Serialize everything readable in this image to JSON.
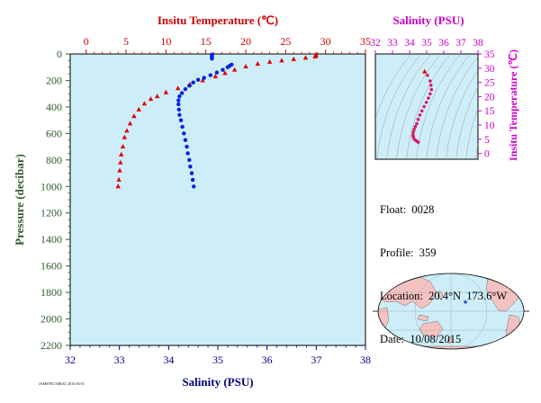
{
  "chart_data": {
    "main": {
      "type": "scatter",
      "top_axis_title": "Insitu Temperature (℃)",
      "bottom_axis_title": "Salinity (PSU)",
      "left_axis_title": "Pressure (decibar)",
      "temperature_range": [
        -2,
        35
      ],
      "salinity_range": [
        32,
        38
      ],
      "pressure_range": [
        0,
        2200
      ],
      "temperature_ticks": [
        "0",
        "5",
        "10",
        "15",
        "20",
        "25",
        "30",
        "35"
      ],
      "salinity_ticks": [
        "32",
        "33",
        "34",
        "35",
        "36",
        "37",
        "38"
      ],
      "pressure_ticks": [
        "0",
        "200",
        "400",
        "600",
        "800",
        "1000",
        "1200",
        "1400",
        "1600",
        "1800",
        "2000",
        "2200"
      ],
      "temperature_profile": [
        [
          28.8,
          5
        ],
        [
          28.8,
          10
        ],
        [
          28.7,
          20
        ],
        [
          27.5,
          30
        ],
        [
          26.0,
          40
        ],
        [
          24.5,
          50
        ],
        [
          23.0,
          60
        ],
        [
          21.5,
          75
        ],
        [
          20.0,
          95
        ],
        [
          18.6,
          120
        ],
        [
          17.4,
          145
        ],
        [
          16.2,
          170
        ],
        [
          14.6,
          200
        ],
        [
          13.0,
          230
        ],
        [
          11.5,
          260
        ],
        [
          10.0,
          290
        ],
        [
          8.9,
          320
        ],
        [
          8.1,
          340
        ],
        [
          7.3,
          375
        ],
        [
          6.6,
          420
        ],
        [
          6.0,
          470
        ],
        [
          5.5,
          525
        ],
        [
          5.1,
          580
        ],
        [
          4.8,
          630
        ],
        [
          4.6,
          700
        ],
        [
          4.4,
          760
        ],
        [
          4.3,
          820
        ],
        [
          4.2,
          880
        ],
        [
          4.1,
          950
        ],
        [
          4.0,
          1000
        ]
      ],
      "salinity_profile": [
        [
          34.88,
          5
        ],
        [
          34.88,
          15
        ],
        [
          34.88,
          25
        ],
        [
          34.88,
          35
        ],
        [
          35.28,
          80
        ],
        [
          35.24,
          90
        ],
        [
          35.2,
          100
        ],
        [
          35.1,
          120
        ],
        [
          34.98,
          140
        ],
        [
          34.85,
          160
        ],
        [
          34.72,
          180
        ],
        [
          34.6,
          195
        ],
        [
          34.5,
          215
        ],
        [
          34.42,
          240
        ],
        [
          34.34,
          265
        ],
        [
          34.27,
          295
        ],
        [
          34.22,
          320
        ],
        [
          34.2,
          350
        ],
        [
          34.2,
          380
        ],
        [
          34.21,
          420
        ],
        [
          34.22,
          460
        ],
        [
          34.25,
          500
        ],
        [
          34.28,
          550
        ],
        [
          34.31,
          600
        ],
        [
          34.34,
          650
        ],
        [
          34.37,
          700
        ],
        [
          34.39,
          750
        ],
        [
          34.42,
          800
        ],
        [
          34.44,
          850
        ],
        [
          34.47,
          900
        ],
        [
          34.49,
          950
        ],
        [
          34.51,
          1000
        ]
      ],
      "temperature_color": "#e00000",
      "salinity_color": "#0020e0",
      "plot_background": "#cdeef8"
    },
    "ts_inset": {
      "type": "scatter",
      "top_axis_title": "Salinity (PSU)",
      "right_axis_title": "Insitu Temperature (℃)",
      "salinity_range": [
        32,
        38
      ],
      "temperature_range": [
        -2,
        35
      ],
      "salinity_ticks": [
        "32",
        "33",
        "34",
        "35",
        "36",
        "37",
        "38"
      ],
      "temperature_ticks": [
        "0",
        "5",
        "10",
        "15",
        "20",
        "25",
        "30",
        "35"
      ],
      "points": [
        [
          34.88,
          28.8
        ],
        [
          35.05,
          27.5
        ],
        [
          35.2,
          25.5
        ],
        [
          35.25,
          24.0
        ],
        [
          35.28,
          22.5
        ],
        [
          35.2,
          21.0
        ],
        [
          35.1,
          19.5
        ],
        [
          34.98,
          18.0
        ],
        [
          34.85,
          16.5
        ],
        [
          34.72,
          15.0
        ],
        [
          34.6,
          13.5
        ],
        [
          34.5,
          12.0
        ],
        [
          34.42,
          10.5
        ],
        [
          34.34,
          9.5
        ],
        [
          34.27,
          8.5
        ],
        [
          34.22,
          7.5
        ],
        [
          34.2,
          6.5
        ],
        [
          34.22,
          5.8
        ],
        [
          34.28,
          5.0
        ],
        [
          34.37,
          4.6
        ],
        [
          34.45,
          4.2
        ],
        [
          34.51,
          4.0
        ]
      ],
      "marker_color": "#d81b60",
      "axis_text_color": "#cc00cc"
    }
  },
  "info": {
    "float_line": "Float:  0028",
    "profile_line": "Profile:  359",
    "location_line": "Location:  20.4°N  173.6°W",
    "date_line": "Date:  10/08/2015"
  },
  "map": {
    "float_marker_color": "#0033cc",
    "ocean_color": "#cdeef8",
    "land_color": "#f4c2c2"
  },
  "credit": "JAMSTEC/ARGO, 2015/10/15"
}
